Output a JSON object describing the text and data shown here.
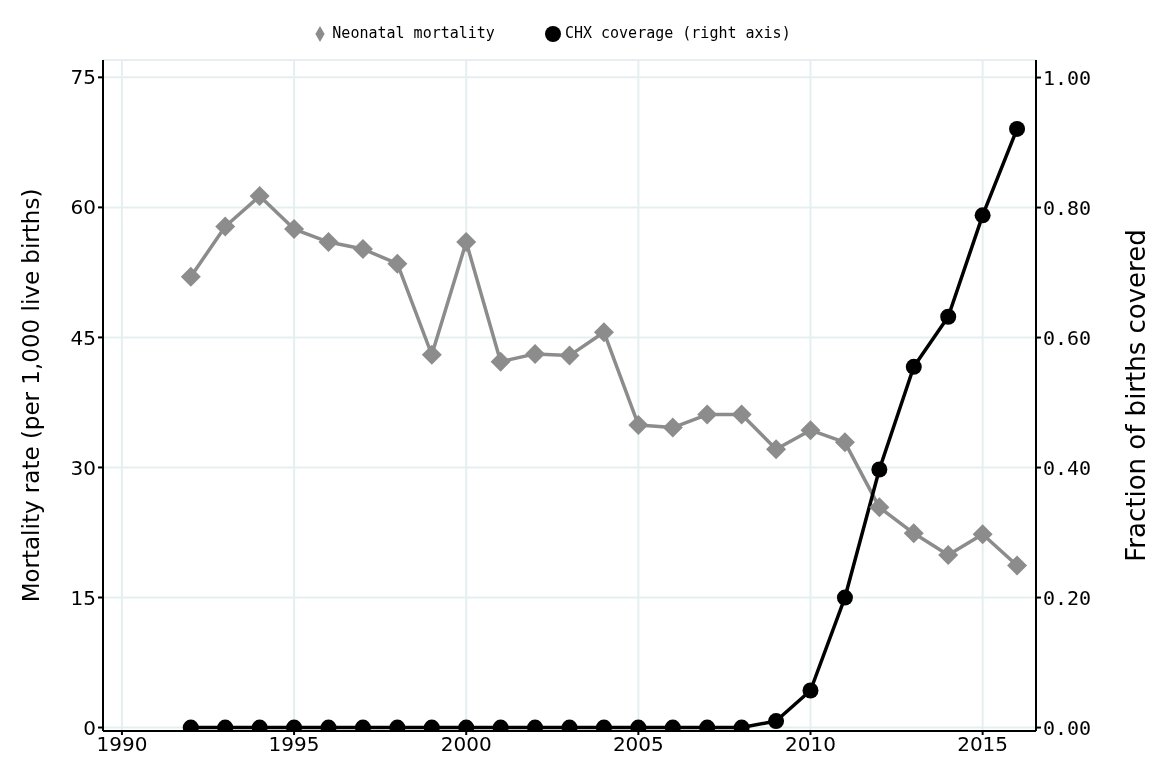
{
  "chart_data": {
    "type": "line",
    "x": [
      1992,
      1993,
      1994,
      1995,
      1996,
      1997,
      1998,
      1999,
      2000,
      2001,
      2002,
      2003,
      2004,
      2005,
      2006,
      2007,
      2008,
      2009,
      2010,
      2011,
      2012,
      2013,
      2014,
      2015,
      2016
    ],
    "series": [
      {
        "name": "Neonatal mortality",
        "color": "#8c8c8c",
        "marker": "diamond",
        "values": [
          52,
          57.8,
          61.3,
          57.5,
          56,
          55.2,
          53.5,
          43,
          56,
          42.2,
          43.1,
          42.9,
          45.6,
          34.9,
          34.6,
          36.1,
          36.1,
          32.1,
          34.3,
          32.9,
          25.4,
          22.4,
          19.9,
          22.3,
          18.7
        ]
      },
      {
        "name": "CHX coverage (right axis)",
        "color": "#000000",
        "marker": "circle",
        "axis": "y2",
        "values": [
          0,
          0,
          0,
          0,
          0,
          0,
          0,
          0,
          0,
          0,
          0,
          0,
          0,
          0,
          0,
          0,
          0,
          0.01,
          0.057,
          0.2,
          0.397,
          0.555,
          0.632,
          0.788,
          0.921
        ]
      }
    ],
    "ylabel": "Mortality rate (per 1,000 live births)",
    "y2label": "Fraction of births covered",
    "xlim": [
      1989.45,
      2016.55
    ],
    "xticks": [
      1990,
      1995,
      2000,
      2005,
      2010,
      2015
    ],
    "ylim": [
      -0.4,
      77
    ],
    "yticks": [
      0,
      15,
      30,
      45,
      60,
      75
    ],
    "y2lim": [
      -0.0053,
      1.027
    ],
    "y2ticks": [
      {
        "value": 0,
        "label": "0.00"
      },
      {
        "value": 0.2,
        "label": "0.20"
      },
      {
        "value": 0.4,
        "label": "0.40"
      },
      {
        "value": 0.6,
        "label": "0.60"
      },
      {
        "value": 0.8,
        "label": "0.80"
      },
      {
        "value": 1,
        "label": "1.00"
      }
    ],
    "grid": true,
    "legend": "top",
    "line_style": "solid"
  }
}
